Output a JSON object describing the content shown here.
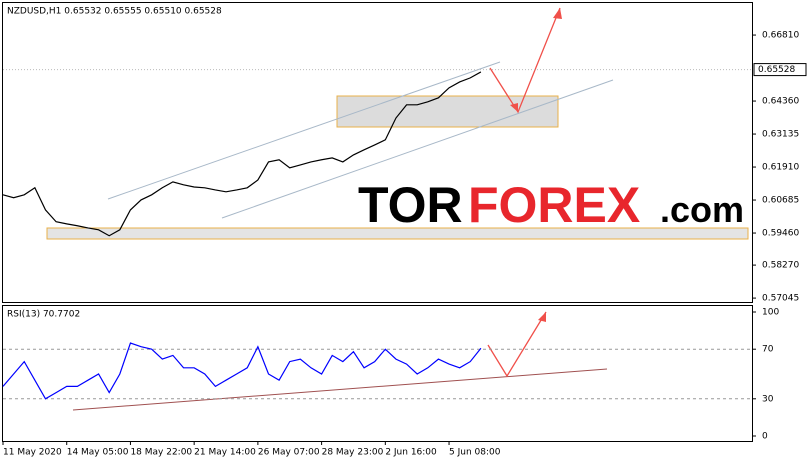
{
  "chart_data": [
    {
      "type": "line",
      "title": "NZDUSD,H1  0.65532 0.65555 0.65510 0.65528",
      "categories": [
        "11 May 2020",
        null,
        null,
        null,
        null,
        null,
        "14 May 05:00",
        null,
        null,
        null,
        null,
        null,
        "18 May 22:00",
        null,
        null,
        null,
        null,
        null,
        "21 May 14:00",
        null,
        null,
        null,
        null,
        null,
        "26 May 07:00",
        null,
        null,
        null,
        null,
        null,
        "28 May 23:00",
        null,
        null,
        null,
        null,
        null,
        "2 Jun 16:00",
        null,
        null,
        null,
        null,
        null,
        "5 Jun 08:00",
        null,
        null,
        null
      ],
      "series": [
        {
          "name": "NZDUSD",
          "color": "#000000",
          "values": [
            0.6088,
            0.6077,
            0.6088,
            0.6114,
            0.6032,
            0.5988,
            0.598,
            0.5973,
            0.5965,
            0.5958,
            0.5936,
            0.5958,
            0.6032,
            0.6069,
            0.6088,
            0.6114,
            0.6136,
            0.6125,
            0.6117,
            0.6114,
            0.6106,
            0.6099,
            0.6106,
            0.6114,
            0.6143,
            0.621,
            0.6218,
            0.6188,
            0.6199,
            0.621,
            0.6218,
            0.6225,
            0.621,
            0.6236,
            0.6255,
            0.6273,
            0.6292,
            0.6373,
            0.6422,
            0.6422,
            0.6433,
            0.6448,
            0.6485,
            0.6507,
            0.6522,
            0.6544
          ]
        }
      ],
      "ylim": [
        0.569,
        0.68
      ],
      "yticks": [
        {
          "value": 0.6681,
          "label": "0.66810"
        },
        {
          "value": 0.6436,
          "label": "0.64360"
        },
        0.63135,
        {
          "value": 0.6191,
          "label": "0.61910"
        },
        0.60685,
        {
          "value": 0.5946,
          "label": "0.59460"
        },
        {
          "value": 0.5827,
          "label": "0.58270"
        },
        0.57045
      ],
      "price_marker": 0.65528
    },
    {
      "type": "line",
      "title": "RSI(13) 70.7702",
      "series": [
        {
          "name": "RSI(13)",
          "color": "#0000ff",
          "values": [
            40,
            50,
            60,
            45,
            30,
            35,
            40,
            40,
            45,
            50,
            35,
            50,
            75,
            72,
            70,
            62,
            65,
            55,
            55,
            50,
            40,
            45,
            50,
            55,
            72,
            50,
            45,
            60,
            62,
            55,
            50,
            65,
            60,
            68,
            55,
            60,
            70,
            62,
            58,
            50,
            55,
            62,
            58,
            55,
            60,
            70.7702
          ]
        }
      ],
      "ylim": [
        0,
        100
      ],
      "yticks": [
        100,
        70,
        30,
        0
      ],
      "grid_values": [
        70,
        30
      ]
    }
  ],
  "watermark": {
    "left": "TOR",
    "middle": "FOREX",
    "right": ".com"
  }
}
